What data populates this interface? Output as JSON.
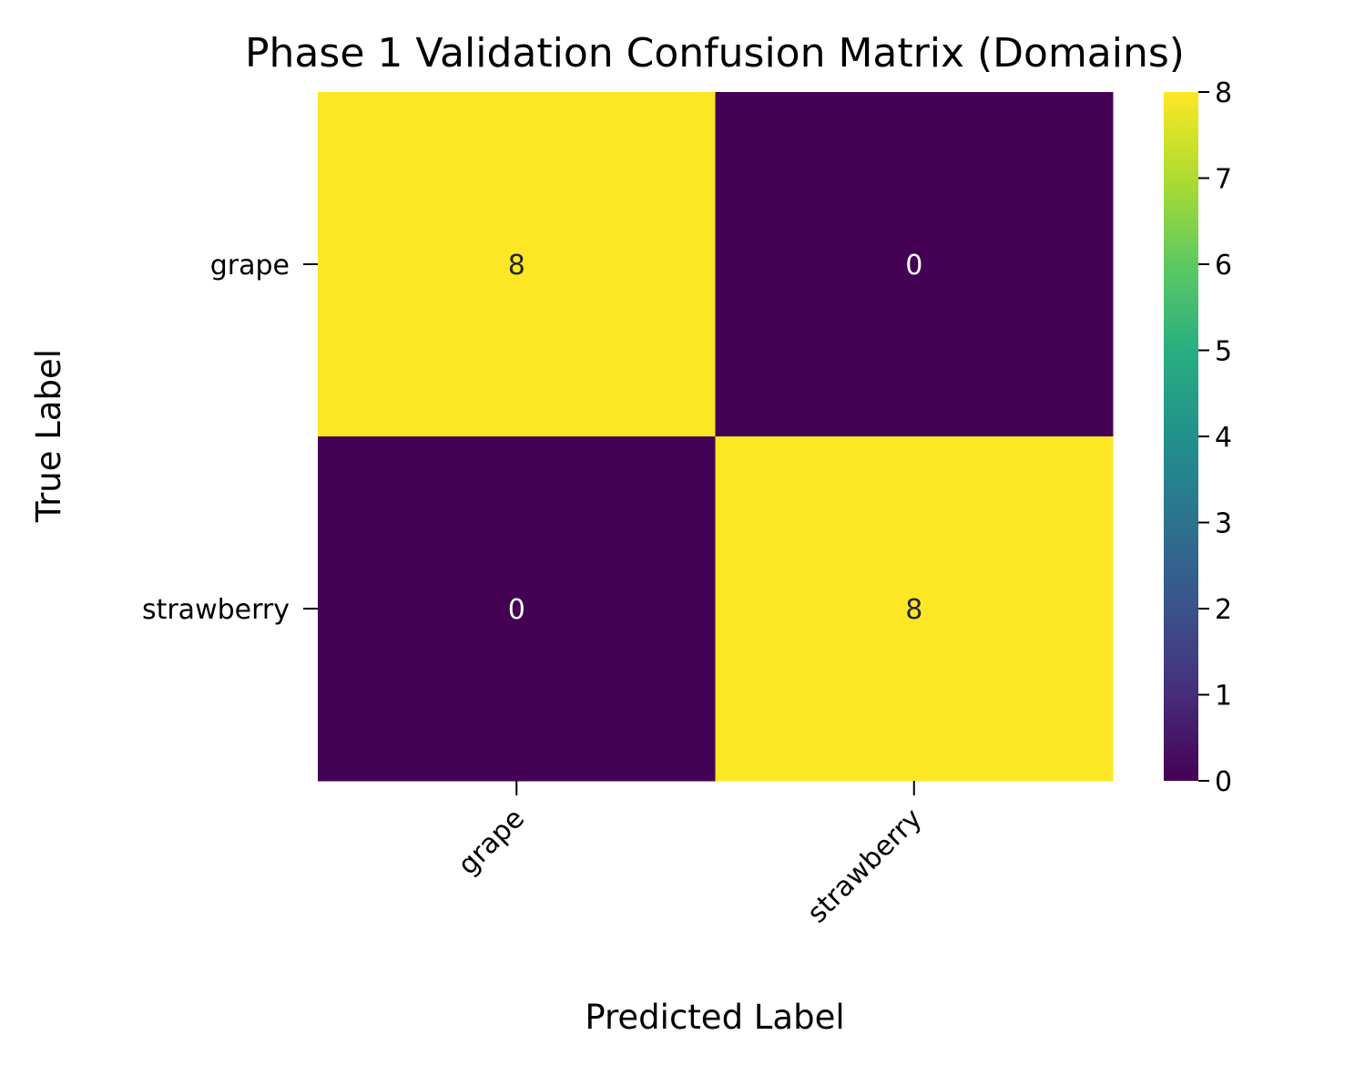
{
  "chart_data": {
    "type": "heatmap",
    "title": "Phase 1 Validation Confusion Matrix (Domains)",
    "xlabel": "Predicted Label",
    "ylabel": "True Label",
    "x_categories": [
      "grape",
      "strawberry"
    ],
    "y_categories": [
      "grape",
      "strawberry"
    ],
    "values": [
      [
        8,
        0
      ],
      [
        0,
        8
      ]
    ],
    "cell_labels": [
      [
        "8",
        "0"
      ],
      [
        "0",
        "8"
      ]
    ],
    "colormap": "viridis",
    "colorbar": {
      "range": [
        0,
        8
      ],
      "ticks": [
        "0",
        "1",
        "2",
        "3",
        "4",
        "5",
        "6",
        "7",
        "8"
      ]
    },
    "grid": false,
    "colors": {
      "low": "#440154",
      "high": "#fde725",
      "text_on_dark": "#ffffff",
      "text_on_light": "#262626"
    }
  }
}
